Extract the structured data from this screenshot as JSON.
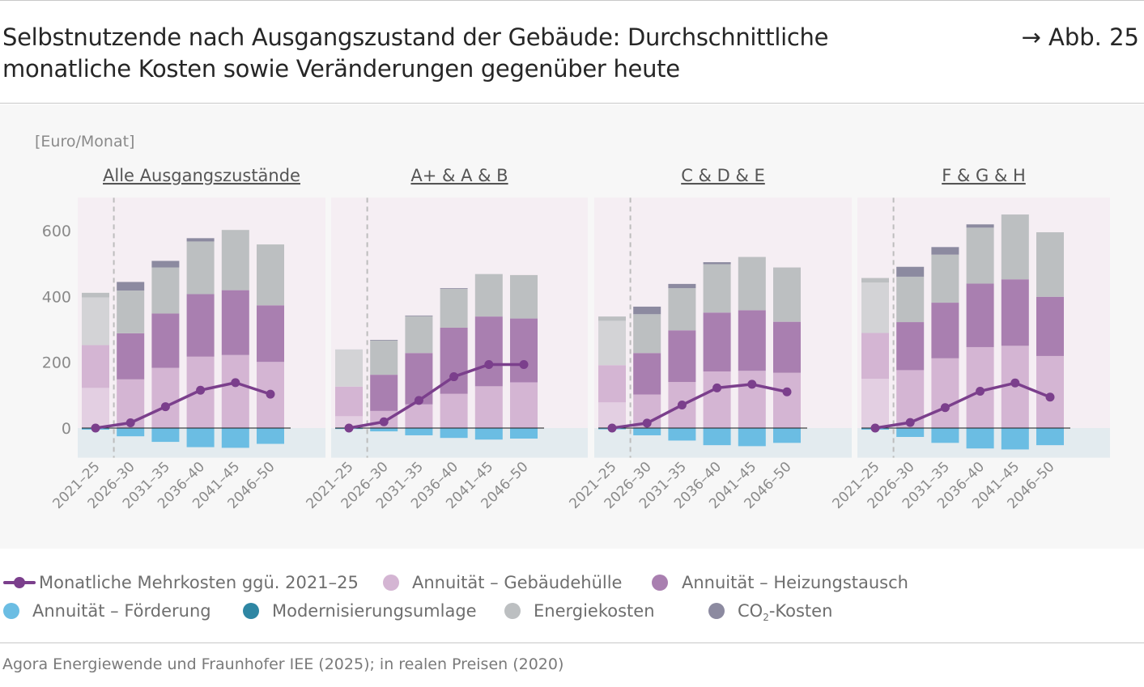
{
  "header": {
    "title": "Selbstnutzende nach Ausgangszustand der Gebäude: Durchschnittliche monatliche Kosten sowie Veränderungen gegenüber heute",
    "figure_ref": "→ Abb. 25"
  },
  "colors": {
    "gebaeudehuelle": "#d4b5d3",
    "gebaeudehuelle_base": "#e3cfe2",
    "heizungstausch": "#a97fb0",
    "foerderung": "#6bbde3",
    "energiekosten": "#bcbfc1",
    "energiekosten_base": "#d3d3d6",
    "co2": "#8c8aa0",
    "line": "#7b3f8c",
    "panel_bg_pos": "#f5eef3",
    "panel_bg_neg": "#e3ebef"
  },
  "chart_data": {
    "type": "bar",
    "ylabel": "[Euro/Monat]",
    "ylim": [
      -90,
      700
    ],
    "yticks": [
      0,
      200,
      400,
      600
    ],
    "categories": [
      "2021–25",
      "2026–30",
      "2031–35",
      "2036–40",
      "2041–45",
      "2046–50"
    ],
    "panels": [
      {
        "title": "Alle Ausgangszustände",
        "series": {
          "Annuität – Gebäudehülle": [
            122,
            148,
            183,
            217,
            222,
            201
          ],
          "Annuität – Heizungstausch": [
            130,
            140,
            165,
            190,
            197,
            172
          ],
          "Energiekosten": [
            145,
            130,
            140,
            160,
            183,
            185
          ],
          "CO2-Kosten": [
            14,
            26,
            20,
            10,
            0,
            0
          ],
          "Annuität – Förderung": [
            -5,
            -25,
            -42,
            -58,
            -60,
            -48
          ],
          "Monatliche Mehrkosten ggü. 2021–25": [
            0,
            16,
            65,
            115,
            138,
            103
          ]
        }
      },
      {
        "title": "A+ & A & B",
        "series": {
          "Annuität – Gebäudehülle": [
            36,
            52,
            72,
            104,
            127,
            139
          ],
          "Annuität – Heizungstausch": [
            90,
            110,
            156,
            201,
            212,
            194
          ],
          "Energiekosten": [
            113,
            104,
            112,
            118,
            129,
            132
          ],
          "CO2-Kosten": [
            0,
            2,
            2,
            2,
            0,
            0
          ],
          "Annuität – Förderung": [
            -3,
            -10,
            -22,
            -30,
            -35,
            -32
          ],
          "Monatliche Mehrkosten ggü. 2021–25": [
            0,
            19,
            84,
            156,
            193,
            193
          ]
        }
      },
      {
        "title": "C & D & E",
        "series": {
          "Annuität – Gebäudehülle": [
            78,
            102,
            140,
            172,
            174,
            168
          ],
          "Annuität – Heizungstausch": [
            113,
            126,
            157,
            179,
            184,
            155
          ],
          "Energiekosten": [
            135,
            118,
            128,
            147,
            162,
            165
          ],
          "CO2-Kosten": [
            13,
            23,
            13,
            6,
            0,
            0
          ],
          "Annuität – Förderung": [
            -4,
            -22,
            -38,
            -52,
            -55,
            -45
          ],
          "Monatliche Mehrkosten ggü. 2021–25": [
            0,
            15,
            70,
            122,
            133,
            110
          ]
        }
      },
      {
        "title": "F & G & H",
        "series": {
          "Annuität – Gebäudehülle": [
            150,
            176,
            212,
            246,
            250,
            219
          ],
          "Annuität – Heizungstausch": [
            139,
            146,
            169,
            193,
            202,
            180
          ],
          "Energiekosten": [
            153,
            138,
            146,
            170,
            197,
            196
          ],
          "CO2-Kosten": [
            14,
            30,
            23,
            10,
            0,
            0
          ],
          "Annuität – Förderung": [
            -5,
            -27,
            -45,
            -62,
            -65,
            -52
          ],
          "Monatliche Mehrkosten ggü. 2021–25": [
            0,
            17,
            62,
            112,
            137,
            94
          ]
        }
      }
    ]
  },
  "legend": {
    "line": "Monatliche Mehrkosten ggü. 2021–25",
    "gebaeudehuelle": "Annuität – Gebäudehülle",
    "heizungstausch": "Annuität – Heizungstausch",
    "foerderung": "Annuität – Förderung",
    "modernisierung": "Modernisierungsumlage",
    "energiekosten": "Energiekosten",
    "co2_main": "CO",
    "co2_sub": "2",
    "co2_suffix": "-Kosten"
  },
  "legend_colors": {
    "modernisierung": "#2e86a3"
  },
  "source": "Agora Energiewende und Fraunhofer IEE (2025); in realen Preisen (2020)"
}
